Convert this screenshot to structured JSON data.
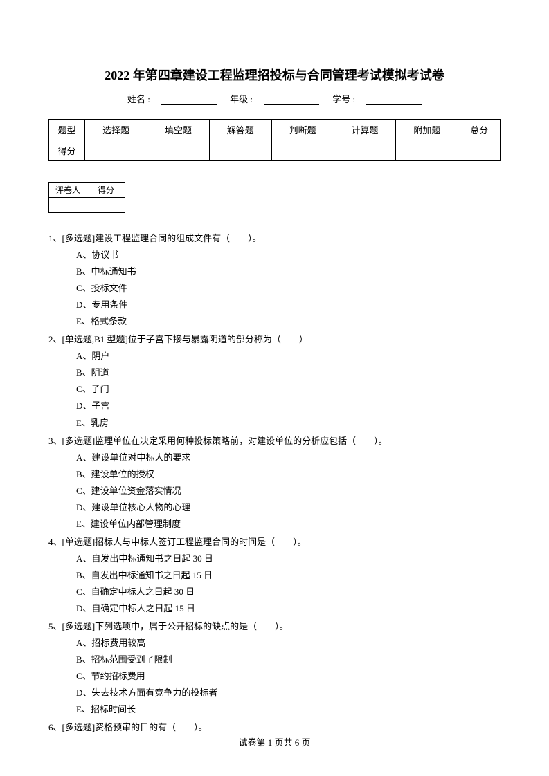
{
  "title": "2022 年第四章建设工程监理招投标与合同管理考试模拟考试卷",
  "info": {
    "name_label": "姓名 :",
    "grade_label": "年级 :",
    "id_label": "学号 :"
  },
  "score_table": {
    "row1": [
      "题型",
      "选择题",
      "填空题",
      "解答题",
      "判断题",
      "计算题",
      "附加题",
      "总分"
    ],
    "row2_label": "得分"
  },
  "grader_table": {
    "col1": "评卷人",
    "col2": "得分"
  },
  "questions": [
    {
      "num": "1、",
      "stem": "[多选题]建设工程监理合同的组成文件有（　　）。",
      "options": [
        "A、协议书",
        "B、中标通知书",
        "C、投标文件",
        "D、专用条件",
        "E、格式条款"
      ]
    },
    {
      "num": "2、",
      "stem": "[单选题,B1 型题]位于子宫下接与暴露阴道的部分称为（　　）",
      "options": [
        "A、阴户",
        "B、阴道",
        "C、子门",
        "D、子宫",
        "E、乳房"
      ]
    },
    {
      "num": "3、",
      "stem": "[多选题]监理单位在决定采用何种投标策略前，对建设单位的分析应包括（　　）。",
      "options": [
        "A、建设单位对中标人的要求",
        "B、建设单位的授权",
        "C、建设单位资金落实情况",
        "D、建设单位核心人物的心理",
        "E、建设单位内部管理制度"
      ]
    },
    {
      "num": "4、",
      "stem": "[单选题]招标人与中标人签订工程监理合同的时间是（　　）。",
      "options": [
        "A、自发出中标通知书之日起 30 日",
        "B、自发出中标通知书之日起 15 日",
        "C、自确定中标人之日起 30 日",
        "D、自确定中标人之日起 15 日"
      ]
    },
    {
      "num": "5、",
      "stem": "[多选题]下列选项中，属于公开招标的缺点的是（　　）。",
      "options": [
        "A、招标费用较高",
        "B、招标范围受到了限制",
        "C、节约招标费用",
        "D、失去技术方面有竞争力的投标者",
        "E、招标时间长"
      ]
    },
    {
      "num": "6、",
      "stem": "[多选题]资格预审的目的有（　　）。",
      "options": []
    }
  ],
  "footer": "试卷第 1 页共 6 页"
}
